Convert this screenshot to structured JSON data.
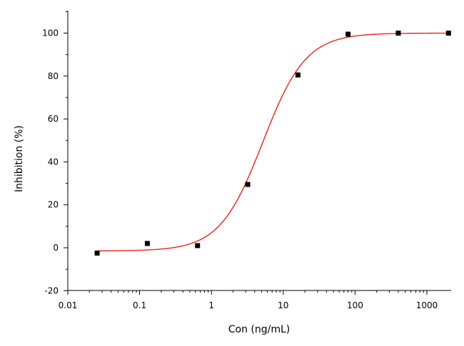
{
  "chart_data": {
    "type": "scatter",
    "xscale": "log",
    "xlim": [
      0.01,
      2000
    ],
    "ylim": [
      -20,
      110
    ],
    "xlabel": "Con (ng/mL)",
    "ylabel": "Inhibition (%)",
    "x_ticks": [
      {
        "value": 0.01,
        "label": "0.01"
      },
      {
        "value": 0.1,
        "label": "0.1"
      },
      {
        "value": 1,
        "label": "1"
      },
      {
        "value": 10,
        "label": "10"
      },
      {
        "value": 100,
        "label": "100"
      },
      {
        "value": 1000,
        "label": "1000"
      }
    ],
    "y_ticks": [
      {
        "value": -20,
        "label": "-20"
      },
      {
        "value": 0,
        "label": "0"
      },
      {
        "value": 20,
        "label": "20"
      },
      {
        "value": 40,
        "label": "40"
      },
      {
        "value": 60,
        "label": "60"
      },
      {
        "value": 80,
        "label": "80"
      },
      {
        "value": 100,
        "label": "100"
      }
    ],
    "series": [
      {
        "type": "scatter",
        "x": [
          0.0256,
          0.128,
          0.64,
          3.2,
          16,
          80,
          400,
          2000
        ],
        "y": [
          -2.5,
          2,
          1,
          29.5,
          80.5,
          99.5,
          100,
          100
        ],
        "color": "#000000",
        "marker": "square"
      }
    ],
    "fit": {
      "type": "sigmoid",
      "color": "#e8241c",
      "bottom": -1.5,
      "top": 100,
      "ec50": 5.2,
      "hill": 1.45,
      "xrange": [
        0.0256,
        2000
      ]
    },
    "grid": false,
    "legend": "none"
  }
}
